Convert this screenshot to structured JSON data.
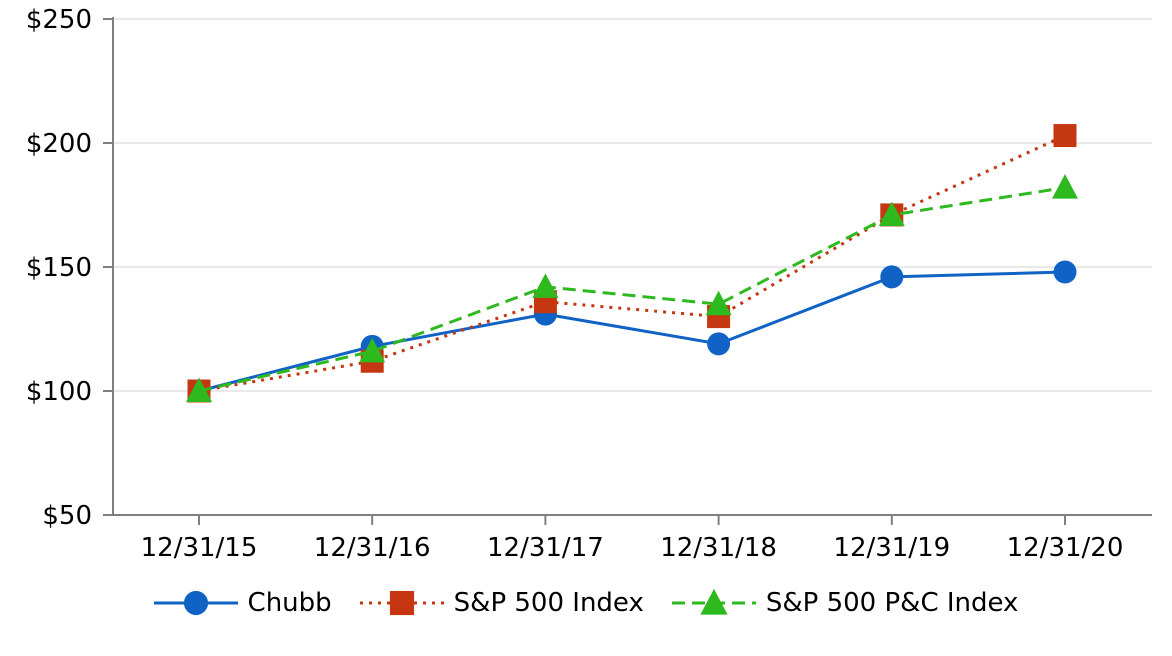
{
  "chart_data": {
    "type": "line",
    "title": "",
    "xlabel": "",
    "ylabel": "",
    "categories": [
      "12/31/15",
      "12/31/16",
      "12/31/17",
      "12/31/18",
      "12/31/19",
      "12/31/20"
    ],
    "series": [
      {
        "name": "Chubb",
        "values": [
          100,
          118,
          131,
          119,
          146,
          148
        ],
        "color": "#1063C5",
        "line_style": "solid",
        "marker": "circle"
      },
      {
        "name": "S&P 500 Index",
        "values": [
          100,
          112,
          136,
          130,
          171,
          203
        ],
        "color": "#C43711",
        "line_style": "dotted",
        "marker": "square"
      },
      {
        "name": "S&P 500 P&C Index",
        "values": [
          100,
          116,
          142,
          135,
          171,
          182
        ],
        "color": "#2EB91F",
        "line_style": "dashed",
        "marker": "triangle"
      }
    ],
    "y_ticks": [
      50,
      100,
      150,
      200,
      250
    ],
    "y_tick_labels": [
      "$50",
      "$100",
      "$150",
      "$200",
      "$250"
    ],
    "ylim": [
      50,
      250
    ],
    "grid": "horizontal",
    "grid_color": "#E2E2E2",
    "axis_color": "#7F7F7F",
    "text_color": "#000000",
    "background": "#FFFFFF",
    "legend_position": "bottom-center"
  }
}
